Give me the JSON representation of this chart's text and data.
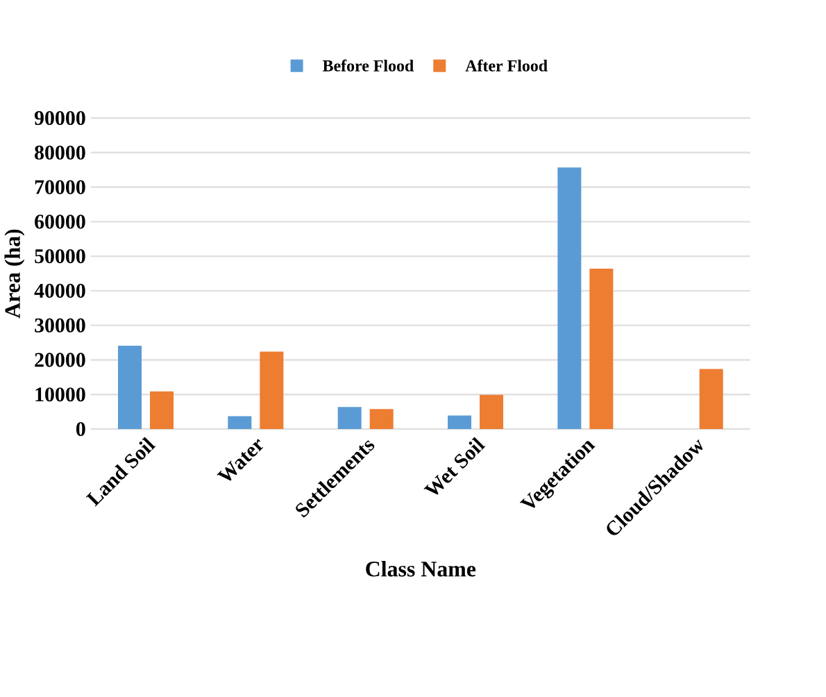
{
  "chart_data": {
    "type": "bar",
    "xlabel": "Class Name",
    "ylabel": "Area (ha)",
    "categories": [
      "Land Soil",
      "Water",
      "Settlements",
      "Wet Soil",
      "Vegetation",
      "Cloud/Shadow"
    ],
    "series": [
      {
        "name": "Before Flood",
        "color": "#5b9bd5",
        "values": [
          24100,
          3700,
          6400,
          3900,
          75700,
          0
        ]
      },
      {
        "name": "After Flood",
        "color": "#ed7d31",
        "values": [
          10900,
          22400,
          5800,
          9900,
          46400,
          17400
        ]
      }
    ],
    "ylim": [
      0,
      90000
    ],
    "yticks": [
      0,
      10000,
      20000,
      30000,
      40000,
      50000,
      60000,
      70000,
      80000,
      90000
    ],
    "grid": "y",
    "legend": "top"
  }
}
